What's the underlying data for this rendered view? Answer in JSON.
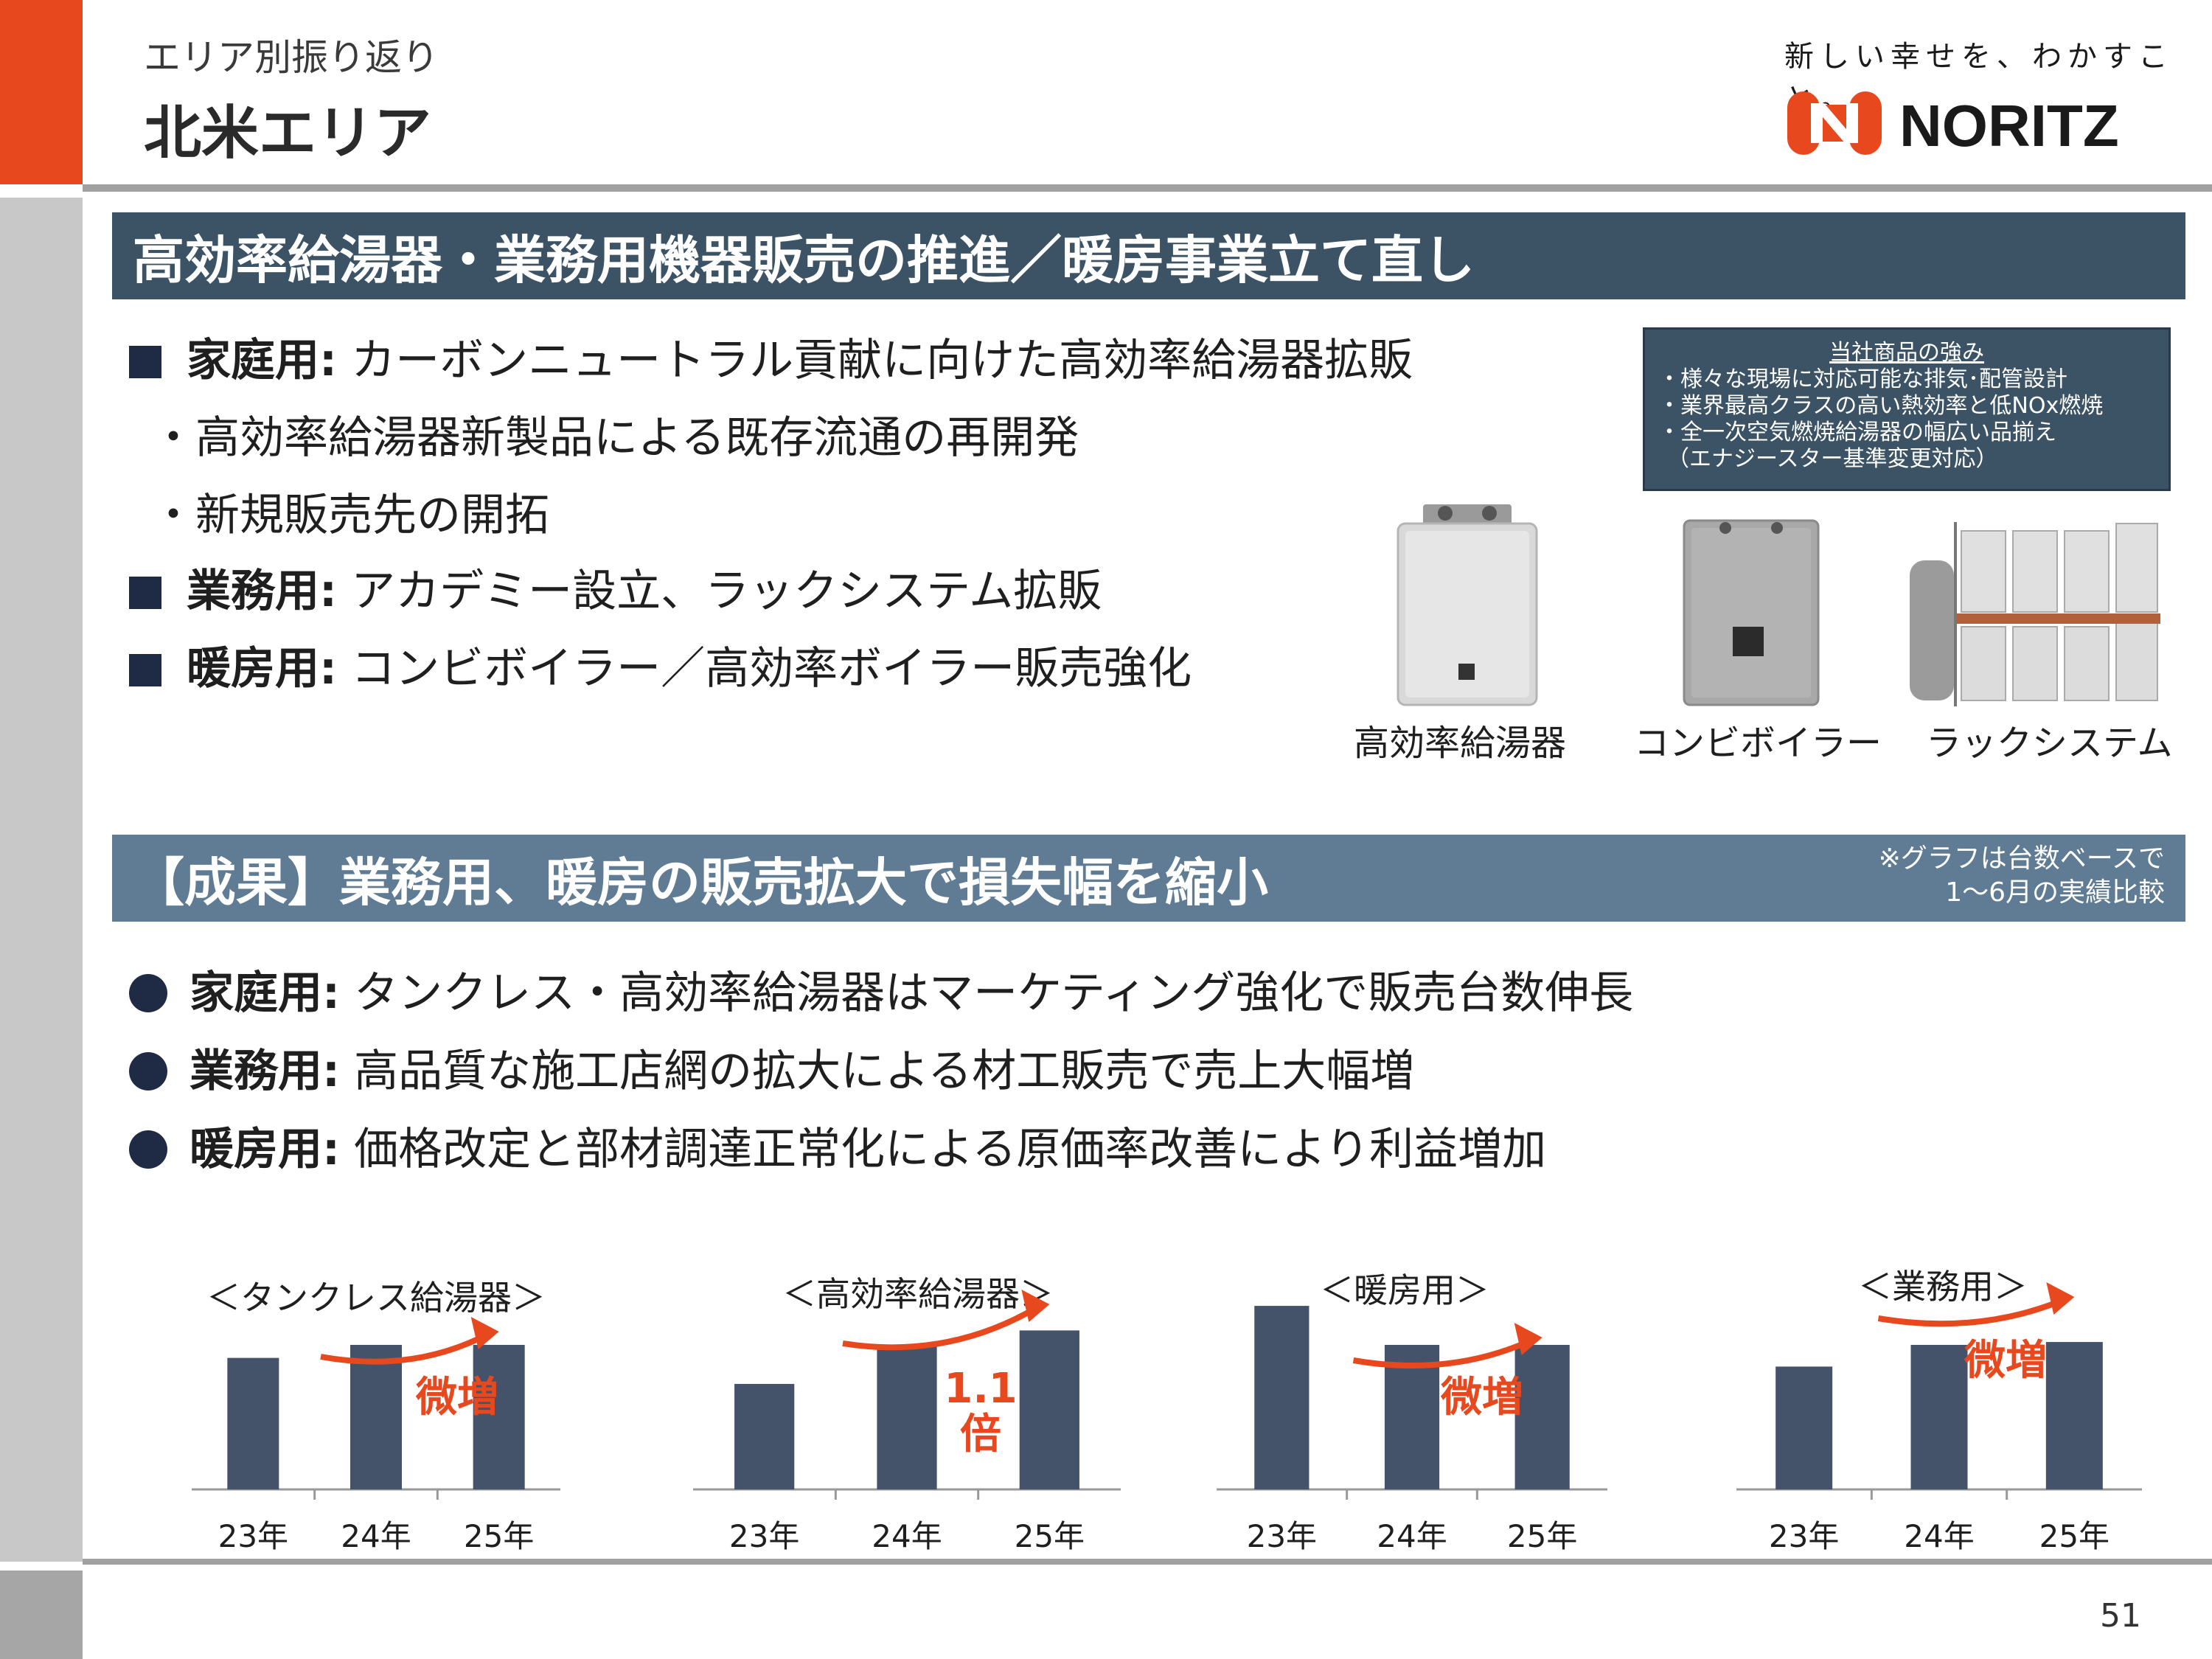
{
  "header": {
    "kicker": "エリア別振り返り",
    "title": "北米エリア",
    "slogan": "新しい幸せを、わかすこと。",
    "logo_text": "NORITZ",
    "accent_color": "#e8481e"
  },
  "section1": {
    "band_title": "高効率給湯器・業務用機器販売の推進／暖房事業立て直し",
    "items": [
      {
        "label": "家庭用:",
        "text": "カーボンニュートラル貢献に向けた高効率給湯器拡販"
      },
      {
        "label": "",
        "text": "・高効率給湯器新製品による既存流通の再開発"
      },
      {
        "label": "",
        "text": "・新規販売先の開拓"
      },
      {
        "label": "業務用:",
        "text": "アカデミー設立、ラックシステム拡販"
      },
      {
        "label": "暖房用:",
        "text": "コンビボイラー／高効率ボイラー販売強化"
      }
    ],
    "strength_box": {
      "heading": "当社商品の強み",
      "lines": [
        "・様々な現場に対応可能な排気･配管設計",
        "・業界最高クラスの高い熱効率と低NOx燃焼",
        "・全一次空気燃焼給湯器の幅広い品揃え",
        "（エナジースター基準変更対応）"
      ]
    },
    "products": [
      {
        "caption": "高効率給湯器",
        "icon": "water-heater-icon"
      },
      {
        "caption": "コンビボイラー",
        "icon": "combi-boiler-icon"
      },
      {
        "caption": "ラックシステム",
        "icon": "rack-system-icon"
      }
    ]
  },
  "section2": {
    "band_title": "【成果】業務用、暖房の販売拡大で損失幅を縮小",
    "note_lines": [
      "※グラフは台数ベースで",
      "1～6月の実績比較"
    ],
    "items": [
      {
        "label": "家庭用:",
        "text": "タンクレス・高効率給湯器はマーケティング強化で販売台数伸長"
      },
      {
        "label": "業務用:",
        "text": "高品質な施工店網の拡大による材工販売で売上大幅増"
      },
      {
        "label": "暖房用:",
        "text": "価格改定と部材調達正常化による原価率改善により利益増加"
      }
    ]
  },
  "chart_data": [
    {
      "type": "bar",
      "title": "＜タンクレス給湯器＞",
      "categories": [
        "23年",
        "24年",
        "25年"
      ],
      "values": [
        0.91,
        1.0,
        1.0
      ],
      "annotation": "微増",
      "bar_color": "#44526a",
      "arrow_color": "#e8481e"
    },
    {
      "type": "bar",
      "title": "＜高効率給湯器＞",
      "categories": [
        "23年",
        "24年",
        "25年"
      ],
      "values": [
        0.73,
        1.0,
        1.1
      ],
      "annotation": "1.1\n倍",
      "bar_color": "#44526a",
      "arrow_color": "#e8481e"
    },
    {
      "type": "bar",
      "title": "＜暖房用＞",
      "categories": [
        "23年",
        "24年",
        "25年"
      ],
      "values": [
        1.27,
        1.0,
        1.0
      ],
      "annotation": "微増",
      "bar_color": "#44526a",
      "arrow_color": "#e8481e"
    },
    {
      "type": "bar",
      "title": "＜業務用＞",
      "categories": [
        "23年",
        "24年",
        "25年"
      ],
      "values": [
        0.85,
        1.0,
        1.02
      ],
      "annotation": "微増",
      "bar_color": "#44526a",
      "arrow_color": "#e8481e"
    }
  ],
  "footer": {
    "page_number": "51"
  }
}
